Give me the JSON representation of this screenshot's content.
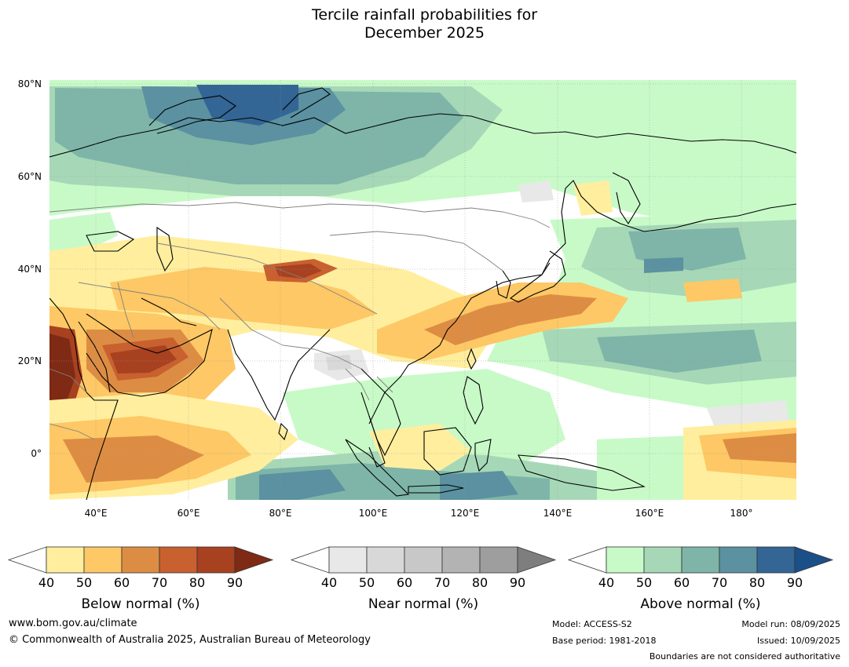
{
  "title_line1": "Tercile rainfall probabilities for",
  "title_line2": "December 2025",
  "map": {
    "lat_labels": [
      "80°N",
      "60°N",
      "40°N",
      "20°N",
      "0°"
    ],
    "lon_labels": [
      "40°E",
      "60°E",
      "80°E",
      "100°E",
      "120°E",
      "140°E",
      "160°E",
      "180°"
    ]
  },
  "legends": [
    {
      "label": "Below normal (%)",
      "ticks": [
        "40",
        "50",
        "60",
        "70",
        "80",
        "90"
      ],
      "colors": [
        "#ffee9e",
        "#fdc865",
        "#dd8d43",
        "#c8602f",
        "#a84120",
        "#7f2a14"
      ]
    },
    {
      "label": "Near normal (%)",
      "ticks": [
        "40",
        "50",
        "60",
        "70",
        "80",
        "90"
      ],
      "colors": [
        "#e8e8e8",
        "#d8d8d8",
        "#c8c8c8",
        "#b3b3b3",
        "#9e9e9e",
        "#7e7e7e"
      ]
    },
    {
      "label": "Above normal (%)",
      "ticks": [
        "40",
        "50",
        "60",
        "70",
        "80",
        "90"
      ],
      "colors": [
        "#c8fac8",
        "#a6d8b7",
        "#7eb5a8",
        "#5b91a0",
        "#336595",
        "#1b4f88"
      ]
    }
  ],
  "footer": {
    "website": "www.bom.gov.au/climate",
    "copyright": "© Commonwealth of Australia 2025, Australian Bureau of Meteorology",
    "model": "Model: ACCESS-S2",
    "base_period": "Base period: 1981-2018",
    "model_run": "Model run: 08/09/2025",
    "issued": "Issued: 10/09/2025",
    "boundaries_note": "Boundaries are not considered authoritative"
  }
}
